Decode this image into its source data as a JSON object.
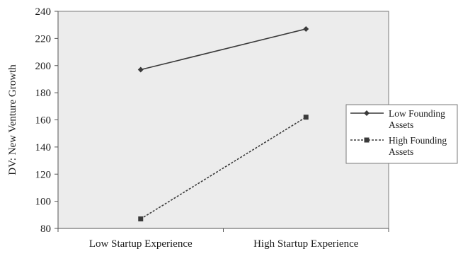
{
  "chart_data": {
    "type": "line",
    "title": "",
    "xlabel": "",
    "ylabel": "DV: New Venture Growth",
    "categories": [
      "Low Startup Experience",
      "High Startup Experience"
    ],
    "ylim": [
      80,
      240
    ],
    "yticks": [
      80,
      100,
      120,
      140,
      160,
      180,
      200,
      220,
      240
    ],
    "grid": false,
    "legend_position": "right",
    "series": [
      {
        "name": "Low Founding Assets",
        "values": [
          197,
          227
        ],
        "line_style": "solid",
        "marker": "diamond",
        "color": "#3a3a3a"
      },
      {
        "name": "High Founding Assets",
        "values": [
          87,
          162
        ],
        "line_style": "dotted",
        "marker": "square",
        "color": "#3a3a3a"
      }
    ]
  },
  "colors": {
    "plot_background": "#ececec",
    "plot_border": "#7a7a7a",
    "legend_background": "#ffffff",
    "axis": "#555555"
  }
}
